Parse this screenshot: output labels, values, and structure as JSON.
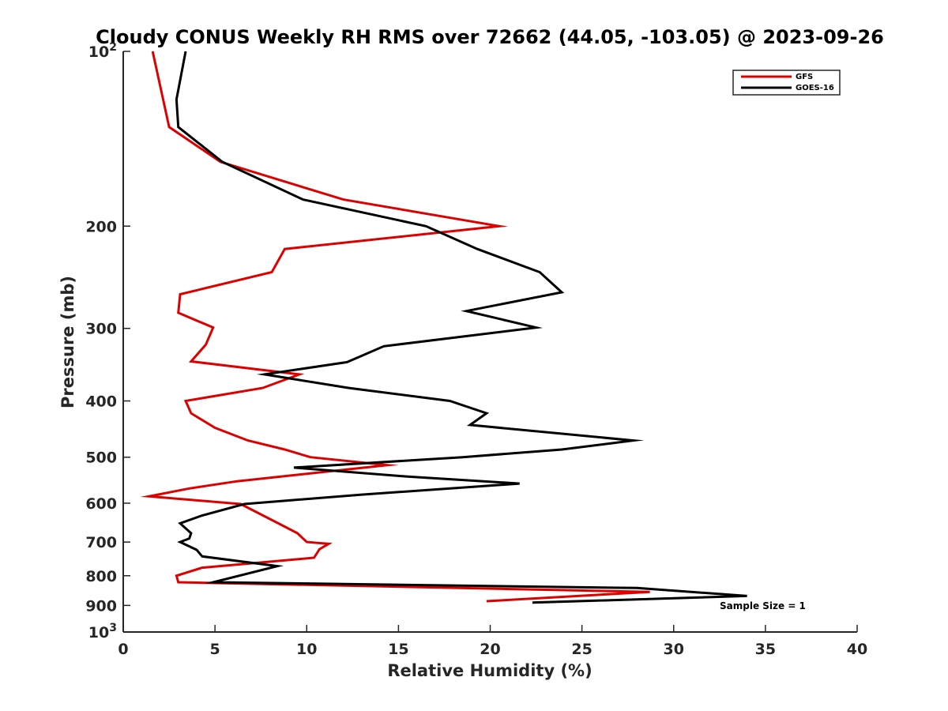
{
  "chart_data": {
    "type": "line",
    "title": "Cloudy CONUS Weekly RH RMS over 72662 (44.05, -103.05) @ 2023-09-26",
    "xlabel": "Relative Humidity (%)",
    "ylabel": "Pressure (mb)",
    "xlim": [
      0,
      40
    ],
    "ylim": [
      100,
      1000
    ],
    "y_scale": "log",
    "y_reversed": true,
    "x_ticks": [
      "0",
      "5",
      "10",
      "15",
      "20",
      "25",
      "30",
      "35",
      "40"
    ],
    "y_ticks": [
      {
        "value": 100,
        "base": "10",
        "exp": "2"
      },
      {
        "value": 200,
        "label": "200"
      },
      {
        "value": 300,
        "label": "300"
      },
      {
        "value": 400,
        "label": "400"
      },
      {
        "value": 500,
        "label": "500"
      },
      {
        "value": 600,
        "label": "600"
      },
      {
        "value": 700,
        "label": "700"
      },
      {
        "value": 800,
        "label": "800"
      },
      {
        "value": 900,
        "label": "900"
      },
      {
        "value": 1000,
        "base": "10",
        "exp": "3"
      }
    ],
    "legend_position": "top-right",
    "grid": false,
    "annotation": "Sample Size = 1",
    "series": [
      {
        "name": "GFS",
        "color": "#dd0000",
        "points": [
          [
            1.6,
            100
          ],
          [
            2.5,
            135
          ],
          [
            5.3,
            155
          ],
          [
            12.0,
            180
          ],
          [
            20.5,
            200
          ],
          [
            8.8,
            219
          ],
          [
            8.1,
            240
          ],
          [
            3.1,
            262
          ],
          [
            3.0,
            282
          ],
          [
            4.9,
            299
          ],
          [
            4.5,
            320
          ],
          [
            3.7,
            342
          ],
          [
            9.6,
            360
          ],
          [
            7.6,
            380
          ],
          [
            3.4,
            400
          ],
          [
            3.7,
            420
          ],
          [
            5.0,
            445
          ],
          [
            6.8,
            468
          ],
          [
            8.8,
            485
          ],
          [
            10.2,
            500
          ],
          [
            14.4,
            516
          ],
          [
            6.2,
            550
          ],
          [
            3.6,
            566
          ],
          [
            1.4,
            584
          ],
          [
            6.4,
            602
          ],
          [
            8.5,
            651
          ],
          [
            9.5,
            676
          ],
          [
            10.0,
            700
          ],
          [
            11.2,
            705
          ],
          [
            10.7,
            720
          ],
          [
            10.4,
            745
          ],
          [
            4.3,
            775
          ],
          [
            2.9,
            800
          ],
          [
            3.0,
            821
          ],
          [
            28.7,
            853
          ],
          [
            19.8,
            885
          ]
        ]
      },
      {
        "name": "GOES-16",
        "color": "#000000",
        "points": [
          [
            3.4,
            100
          ],
          [
            2.9,
            121
          ],
          [
            3.0,
            135
          ],
          [
            5.4,
            155
          ],
          [
            9.8,
            180
          ],
          [
            16.5,
            200
          ],
          [
            19.3,
            219
          ],
          [
            22.7,
            240
          ],
          [
            23.9,
            260
          ],
          [
            18.7,
            280
          ],
          [
            22.5,
            299
          ],
          [
            14.2,
            322
          ],
          [
            12.2,
            343
          ],
          [
            7.7,
            360
          ],
          [
            12.3,
            380
          ],
          [
            17.8,
            400
          ],
          [
            19.8,
            420
          ],
          [
            18.9,
            440
          ],
          [
            27.8,
            468
          ],
          [
            23.9,
            485
          ],
          [
            18.5,
            500
          ],
          [
            9.3,
            521
          ],
          [
            15.5,
            540
          ],
          [
            21.6,
            555
          ],
          [
            13.0,
            580
          ],
          [
            6.6,
            602
          ],
          [
            4.3,
            630
          ],
          [
            3.1,
            650
          ],
          [
            3.7,
            676
          ],
          [
            3.6,
            690
          ],
          [
            3.1,
            700
          ],
          [
            4.0,
            722
          ],
          [
            4.3,
            741
          ],
          [
            8.4,
            770
          ],
          [
            4.9,
            821
          ],
          [
            28.0,
            840
          ],
          [
            34.0,
            867
          ],
          [
            22.3,
            890
          ]
        ]
      }
    ]
  }
}
